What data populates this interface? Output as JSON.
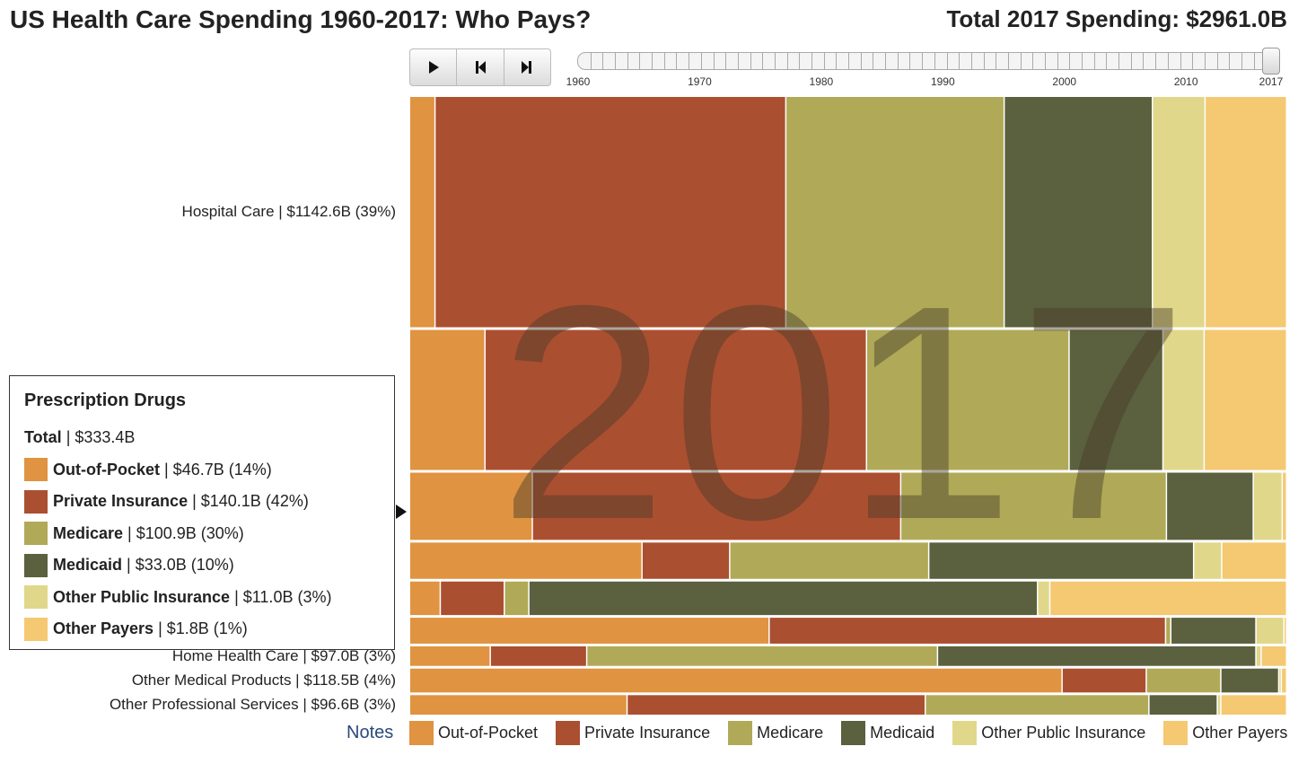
{
  "header": {
    "title": "US Health Care Spending 1960-2017: Who Pays?",
    "total_label": "Total 2017 Spending: $2961.0B"
  },
  "controls": {
    "play_icon": "play-icon",
    "step_back_icon": "step-back-icon",
    "step_forward_icon": "step-forward-icon"
  },
  "timeline": {
    "ticks": [
      "1960",
      "1970",
      "1980",
      "1990",
      "2000",
      "2010",
      "2017"
    ],
    "min_year": 1960,
    "max_year": 2017,
    "selected_year": 2017
  },
  "big_year": "2017",
  "colors": {
    "Out-of-Pocket": "#e09340",
    "Private Insurance": "#ab4f31",
    "Medicare": "#b0aa58",
    "Medicaid": "#5b603f",
    "Other Public Insurance": "#e0d78a",
    "Other Payers": "#f5c872"
  },
  "chart_data": {
    "type": "bar",
    "title": "US Health Care Spending 1960-2017: Who Pays?",
    "year": 2017,
    "total": 2961.0,
    "series": [
      {
        "name": "Out-of-Pocket"
      },
      {
        "name": "Private Insurance"
      },
      {
        "name": "Medicare"
      },
      {
        "name": "Medicaid"
      },
      {
        "name": "Other Public Insurance"
      },
      {
        "name": "Other Payers"
      }
    ],
    "categories": [
      {
        "label": "Hospital Care | $1142.6B (39%)",
        "total": 1142.6,
        "shares": [
          2.9,
          40.0,
          24.9,
          16.9,
          6.0,
          9.3
        ]
      },
      {
        "label": "",
        "total": 694.9,
        "shares": [
          8.6,
          43.5,
          23.1,
          10.7,
          4.7,
          9.4
        ]
      },
      {
        "label": "Prescription Drugs | $333.4B",
        "total": 333.4,
        "shares": [
          14.0,
          42.0,
          30.3,
          9.9,
          3.3,
          0.5
        ]
      },
      {
        "label": "",
        "total": 180.0,
        "shares": [
          26.5,
          10.0,
          22.7,
          30.2,
          3.2,
          7.4
        ]
      },
      {
        "label": "",
        "total": 166.3,
        "shares": [
          3.5,
          7.3,
          2.8,
          58.0,
          1.4,
          27.0
        ]
      },
      {
        "label": "",
        "total": 128.5,
        "shares": [
          41.0,
          45.2,
          0.6,
          9.7,
          3.2,
          0.3
        ]
      },
      {
        "label": "Home Health Care | $97.0B (3%)",
        "total": 97.0,
        "shares": [
          9.2,
          11.0,
          40.0,
          36.3,
          0.6,
          2.9
        ]
      },
      {
        "label": "Other Medical Products | $118.5B (4%)",
        "total": 118.5,
        "shares": [
          74.4,
          9.6,
          8.5,
          6.6,
          0.3,
          0.6
        ]
      },
      {
        "label": "Other Professional Services | $96.6B (3%)",
        "total": 96.6,
        "shares": [
          24.8,
          34.0,
          25.5,
          7.8,
          0.4,
          7.5
        ]
      }
    ]
  },
  "tooltip": {
    "title": "Prescription Drugs",
    "total_label": "Total",
    "total_value": "| $333.4B",
    "rows": [
      {
        "name": "Out-of-Pocket",
        "value": "| $46.7B (14%)",
        "color": "#e09340"
      },
      {
        "name": "Private Insurance",
        "value": "| $140.1B (42%)",
        "color": "#ab4f31"
      },
      {
        "name": "Medicare",
        "value": "| $100.9B (30%)",
        "color": "#b0aa58"
      },
      {
        "name": "Medicaid",
        "value": "| $33.0B (10%)",
        "color": "#5b603f"
      },
      {
        "name": "Other Public Insurance",
        "value": "| $11.0B (3%)",
        "color": "#e0d78a"
      },
      {
        "name": "Other Payers",
        "value": "| $1.8B (1%)",
        "color": "#f5c872"
      }
    ]
  },
  "legend": {
    "notes_label": "Notes",
    "items": [
      {
        "name": "Out-of-Pocket",
        "color": "#e09340"
      },
      {
        "name": "Private Insurance",
        "color": "#ab4f31"
      },
      {
        "name": "Medicare",
        "color": "#b0aa58"
      },
      {
        "name": "Medicaid",
        "color": "#5b603f"
      },
      {
        "name": "Other Public Insurance",
        "color": "#e0d78a"
      },
      {
        "name": "Other Payers",
        "color": "#f5c872"
      }
    ]
  }
}
